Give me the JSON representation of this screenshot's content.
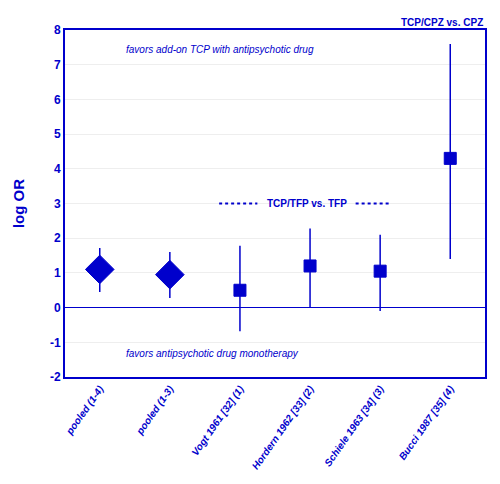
{
  "chart_data": {
    "type": "scatter",
    "categories": [
      "pooled (1-4)",
      "pooled (1-3)",
      "Vogt 1961 [32] (1)",
      "Hordern 1962 [33] (2)",
      "Schiele 1963 [34] (3)",
      "Bucci 1987 [35] (4)"
    ],
    "series": [
      {
        "marker": "diamond",
        "values": [
          1.1,
          0.95,
          null,
          null,
          null,
          null
        ],
        "ci_low": [
          0.45,
          0.28,
          null,
          null,
          null,
          null
        ],
        "ci_high": [
          1.72,
          1.6,
          null,
          null,
          null,
          null
        ]
      },
      {
        "marker": "square",
        "values": [
          null,
          null,
          0.5,
          1.2,
          1.05,
          4.3
        ],
        "ci_low": [
          null,
          null,
          -0.68,
          0.02,
          -0.1,
          1.4
        ],
        "ci_high": [
          null,
          null,
          1.78,
          2.28,
          2.1,
          7.6
        ]
      }
    ],
    "color": "#0000CC",
    "ylabel": "log OR",
    "ylim": [
      -2,
      8
    ],
    "yticks": [
      -2,
      -1,
      0,
      1,
      2,
      3,
      4,
      5,
      6,
      7,
      8
    ],
    "grid": true,
    "annotations": [
      {
        "text": "TCP/TFP vs. TFP",
        "y": 3.0
      },
      {
        "text": "TCP/CPZ vs. CPZ"
      },
      {
        "text": "favors add-on TCP with antipsychotic drug"
      },
      {
        "text": "favors antipsychotic drug monotherapy"
      }
    ]
  }
}
